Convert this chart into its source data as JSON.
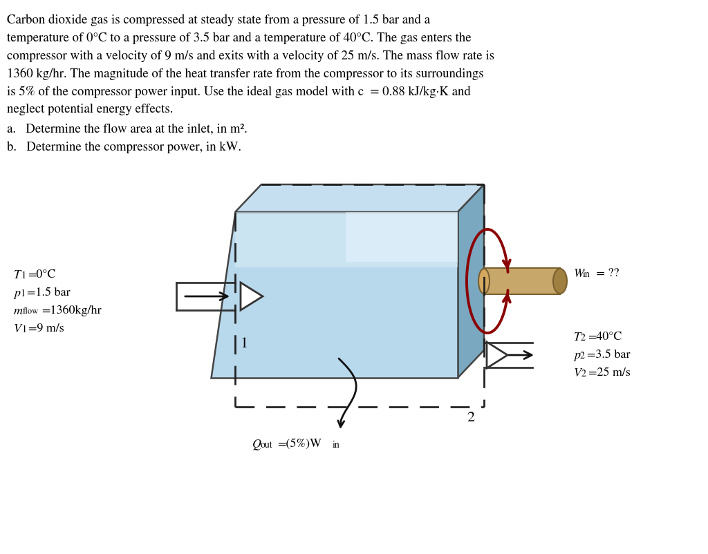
{
  "bg_color": "#ffffff",
  "font_color": "#000000",
  "compressor_front_color": "#b8d8ec",
  "compressor_top_color": "#c8e4f4",
  "compressor_right_color": "#7aa8c0",
  "dashed_color": "#222222",
  "shaft_body_color": "#c8a86a",
  "shaft_end_color": "#b09050",
  "rotation_color": "#8b0000",
  "arrow_color": "#111111",
  "text_paragraph": "Carbon dioxide gas is compressed at steady state from a pressure of 1.5 bar and a\ntemperature of 0°C to a pressure of 3.5 bar and a temperature of 40°C. The gas enters the\ncompressor with a velocity of 9 m/s and exits with a velocity of 25 m/s. The mass flow rate is\n1360 kg/hr. The magnitude of the heat transfer rate from the compressor to its surroundings\nis 5% of the compressor power input. Use the ideal gas model with c",
  "text_paragraph2": " = 0.88 kJ/kg·K and",
  "text_paragraph3": "neglect potential energy effects.",
  "text_a": "a.   Determine the flow area at the inlet, in m².",
  "text_b": "b.   Determine the compressor power, in kW.",
  "inlet_line1": "T",
  "inlet_line1b": "1",
  "inlet_line1c": "=0°C",
  "inlet_line2": "p",
  "inlet_line2b": "1",
  "inlet_line2c": "=1.5 bar",
  "inlet_line3a": "m",
  "inlet_line3b": "flow",
  "inlet_line3c": "=1360kg/hr",
  "inlet_line4": "V",
  "inlet_line4b": "1",
  "inlet_line4c": "=9 m/s",
  "outlet_line1": "T",
  "outlet_line1b": "2",
  "outlet_line1c": "=40°C",
  "outlet_line2": "p",
  "outlet_line2b": "2",
  "outlet_line2c": "=3.5 bar",
  "outlet_line3": "V",
  "outlet_line3b": "2",
  "outlet_line3c": "=25 m/s",
  "win_text": "W",
  "win_sub": "in",
  "win_text2": " = ??",
  "qout_text": "Q",
  "qout_sub": "out",
  "qout_text2": "=(5%)W",
  "qout_sub2": "in",
  "label1": "1",
  "label2": "2"
}
